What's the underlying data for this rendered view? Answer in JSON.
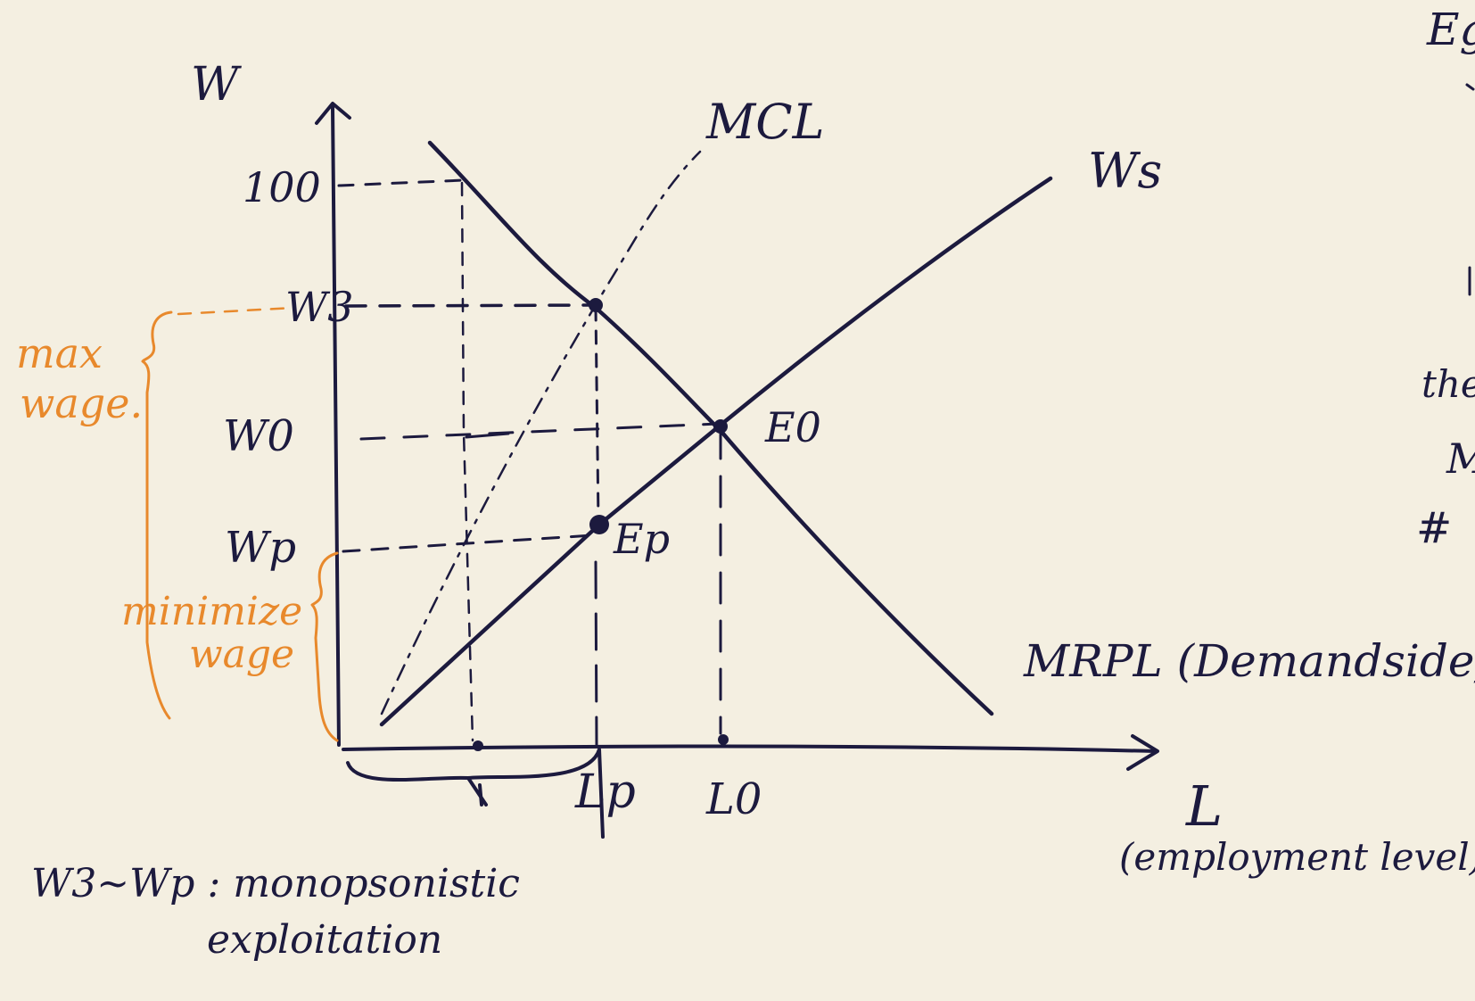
{
  "axes": {
    "y_label": "W",
    "x_label": "L",
    "x_sublabel": "(employment level)"
  },
  "y_ticks": {
    "t100": "100",
    "w3": "W3",
    "w0": "W0",
    "wp": "Wp"
  },
  "x_ticks": {
    "lp": "Lp",
    "l0": "L0"
  },
  "curves": {
    "mcl": "MCL",
    "ws": "Ws",
    "mrpl": "MRPL (Demandside)"
  },
  "points": {
    "e0": "E0",
    "ep": "Ep"
  },
  "annotations": {
    "max_wage_1": "max",
    "max_wage_2": "wage.",
    "min_wage_1": "minimize",
    "min_wage_2": "wage",
    "bottom_note_1": "W3~Wp : monopsonistic",
    "bottom_note_2": "exploitation"
  },
  "right_margin": {
    "c1": "Eg",
    "c2": "the",
    "c3": "M",
    "c4": "#"
  },
  "colors": {
    "ink": "#1c1a3e",
    "accent": "#e8892c",
    "paper": "#f4efe1"
  }
}
